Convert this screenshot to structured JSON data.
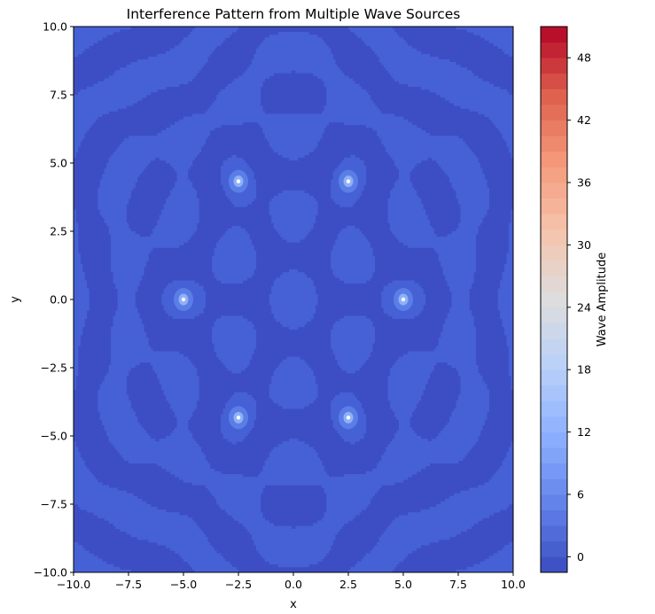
{
  "chart_data": {
    "type": "contour",
    "title": "Interference Pattern from Multiple Wave Sources",
    "xlabel": "x",
    "ylabel": "y",
    "xlim": [
      -10,
      10
    ],
    "ylim": [
      -10,
      10
    ],
    "x_ticks": [
      "−10.0",
      "−7.5",
      "−5.0",
      "−2.5",
      "0.0",
      "2.5",
      "5.0",
      "7.5",
      "10.0"
    ],
    "y_ticks": [
      "−10.0",
      "−7.5",
      "−5.0",
      "−2.5",
      "0.0",
      "2.5",
      "5.0",
      "7.5",
      "10.0"
    ],
    "x_tick_values": [
      -10,
      -7.5,
      -5,
      -2.5,
      0,
      2.5,
      5,
      7.5,
      10
    ],
    "y_tick_values": [
      -10,
      -7.5,
      -5,
      -2.5,
      0,
      2.5,
      5,
      7.5,
      10
    ],
    "sources": [
      {
        "x": 5.0,
        "y": 0.0
      },
      {
        "x": 2.5,
        "y": 4.33
      },
      {
        "x": -2.5,
        "y": 4.33
      },
      {
        "x": -5.0,
        "y": 0.0
      },
      {
        "x": -2.5,
        "y": -4.33
      },
      {
        "x": 2.5,
        "y": -4.33
      }
    ],
    "colorbar": {
      "label": "Wave Amplitude",
      "colormap": "coolwarm",
      "range": [
        -1.5,
        51
      ],
      "ticks": [
        "0",
        "6",
        "12",
        "18",
        "24",
        "30",
        "36",
        "42",
        "48"
      ],
      "tick_values": [
        0,
        6,
        12,
        18,
        24,
        30,
        36,
        42,
        48
      ]
    },
    "colors": {
      "background_low": "#3d4ec4",
      "band_high": "#4660d6",
      "source_halo": "#5b7ee6",
      "source_core": "#ffffff"
    },
    "grid": false,
    "legend": "none"
  }
}
